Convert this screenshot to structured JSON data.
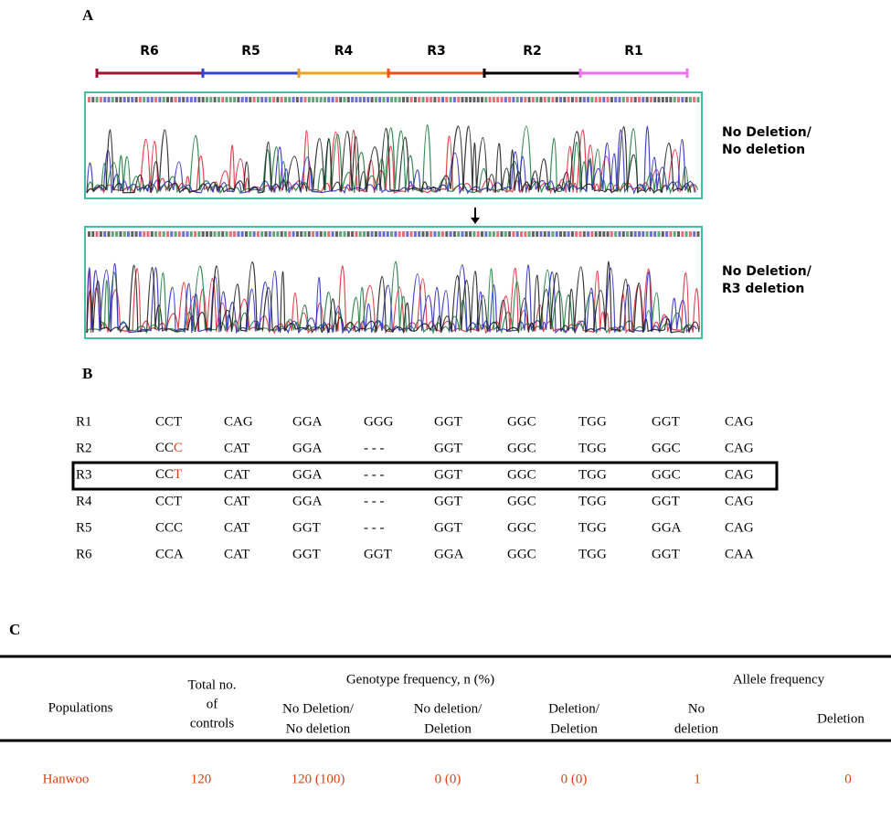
{
  "panel_a": {
    "label": "A",
    "regions": [
      "R6",
      "R5",
      "R4",
      "R3",
      "R2",
      "R1"
    ],
    "region_colors": [
      "#a01030",
      "#3040d0",
      "#f0a020",
      "#f05018",
      "#000000",
      "#f070f0"
    ],
    "traces": [
      {
        "genotype": [
          "No Deletion/",
          "No deletion"
        ]
      },
      {
        "genotype": [
          "No Deletion/",
          "R3 deletion"
        ]
      }
    ]
  },
  "panel_b": {
    "label": "B",
    "highlight_color": "#e04010",
    "rows": [
      {
        "name": "R1",
        "codons": [
          "CCT",
          "CAG",
          "GGA",
          "GGG",
          "GGT",
          "GGC",
          "TGG",
          "GGT",
          "CAG"
        ]
      },
      {
        "name": "R2",
        "codons": [
          {
            "base": "CC",
            "mutation": "C"
          },
          "CAT",
          "GGA",
          "- - -",
          "GGT",
          "GGC",
          "TGG",
          "GGC",
          "CAG"
        ]
      },
      {
        "name": "R3",
        "codons": [
          {
            "base": "CC",
            "mutation": "T"
          },
          "CAT",
          "GGA",
          "- - -",
          "GGT",
          "GGC",
          "TGG",
          "GGC",
          "CAG"
        ]
      },
      {
        "name": "R4",
        "codons": [
          "CCT",
          "CAT",
          "GGA",
          "- - -",
          "GGT",
          "GGC",
          "TGG",
          "GGT",
          "CAG"
        ]
      },
      {
        "name": "R5",
        "codons": [
          "CCC",
          "CAT",
          "GGT",
          "- - -",
          "GGT",
          "GGC",
          "TGG",
          "GGA",
          "CAG"
        ]
      },
      {
        "name": "R6",
        "codons": [
          "CCA",
          "CAT",
          "GGT",
          "GGT",
          "GGA",
          "GGC",
          "TGG",
          "GGT",
          "CAA"
        ]
      }
    ]
  },
  "panel_c": {
    "label": "C",
    "header": {
      "populations": "Populations",
      "total": [
        "Total no.",
        "of",
        "controls"
      ],
      "genotype_group": "Genotype frequency, n (%)",
      "allele_group": "Allele frequency",
      "genotypes": [
        [
          "No Deletion/",
          "No deletion"
        ],
        [
          "No deletion/",
          "Deletion"
        ],
        [
          "Deletion/",
          "Deletion"
        ]
      ],
      "alleles": [
        [
          "No",
          "deletion"
        ],
        [
          "Deletion"
        ]
      ]
    },
    "row_color": "#e04010",
    "rows": [
      {
        "population": "Hanwoo",
        "total": 120,
        "genotypes": [
          "120 (100)",
          "0 (0)",
          "0 (0)"
        ],
        "alleles": [
          1,
          0
        ]
      }
    ]
  }
}
